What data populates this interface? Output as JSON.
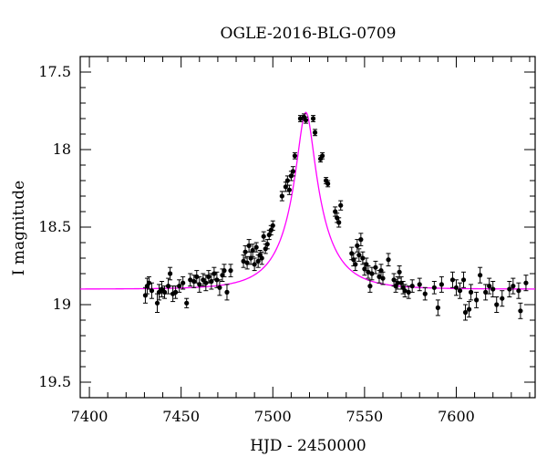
{
  "chart_data": {
    "type": "scatter",
    "title": "OGLE-2016-BLG-0709",
    "xlabel": "HJD - 2450000",
    "ylabel": "I magnitude",
    "xlim": [
      7395,
      7643
    ],
    "ylim": [
      19.6,
      17.4
    ],
    "y_inverted": true,
    "x_ticks": [
      7400,
      7450,
      7500,
      7550,
      7600
    ],
    "y_ticks": [
      17.5,
      18,
      18.5,
      19,
      19.5
    ],
    "grid": false,
    "legend": "none",
    "colors": {
      "points": "#000000",
      "model": "#ff00ff",
      "frame": "#000000"
    },
    "series": [
      {
        "type": "scatter_with_errorbars",
        "points": [
          [
            7430.5,
            18.94,
            0.05
          ],
          [
            7431.5,
            18.88,
            0.05
          ],
          [
            7432.5,
            18.86,
            0.04
          ],
          [
            7434,
            18.91,
            0.05
          ],
          [
            7437,
            18.99,
            0.06
          ],
          [
            7438,
            18.92,
            0.05
          ],
          [
            7439.5,
            18.9,
            0.05
          ],
          [
            7441,
            18.92,
            0.04
          ],
          [
            7443,
            18.88,
            0.05
          ],
          [
            7444,
            18.8,
            0.04
          ],
          [
            7445.5,
            18.93,
            0.05
          ],
          [
            7447,
            18.92,
            0.04
          ],
          [
            7449,
            18.88,
            0.04
          ],
          [
            7451,
            18.86,
            0.04
          ],
          [
            7453,
            18.99,
            0.03
          ],
          [
            7455,
            18.84,
            0.04
          ],
          [
            7457,
            18.85,
            0.04
          ],
          [
            7458.5,
            18.82,
            0.04
          ],
          [
            7460,
            18.87,
            0.05
          ],
          [
            7462,
            18.84,
            0.04
          ],
          [
            7463.5,
            18.86,
            0.05
          ],
          [
            7465,
            18.82,
            0.04
          ],
          [
            7466.5,
            18.85,
            0.05
          ],
          [
            7468,
            18.8,
            0.04
          ],
          [
            7469.5,
            18.84,
            0.05
          ],
          [
            7471,
            18.89,
            0.05
          ],
          [
            7472.5,
            18.81,
            0.04
          ],
          [
            7473.5,
            18.78,
            0.04
          ],
          [
            7475,
            18.92,
            0.05
          ],
          [
            7477,
            18.78,
            0.04
          ],
          [
            7484,
            18.72,
            0.04
          ],
          [
            7485,
            18.66,
            0.04
          ],
          [
            7486,
            18.73,
            0.04
          ],
          [
            7487,
            18.62,
            0.04
          ],
          [
            7488,
            18.7,
            0.04
          ],
          [
            7489,
            18.65,
            0.04
          ],
          [
            7490,
            18.74,
            0.04
          ],
          [
            7491,
            18.63,
            0.03
          ],
          [
            7492,
            18.72,
            0.04
          ],
          [
            7493,
            18.68,
            0.03
          ],
          [
            7494,
            18.7,
            0.04
          ],
          [
            7495,
            18.56,
            0.03
          ],
          [
            7496,
            18.64,
            0.03
          ],
          [
            7497,
            18.61,
            0.03
          ],
          [
            7498,
            18.55,
            0.03
          ],
          [
            7499,
            18.52,
            0.03
          ],
          [
            7500,
            18.49,
            0.03
          ],
          [
            7505,
            18.3,
            0.03
          ],
          [
            7507,
            18.24,
            0.03
          ],
          [
            7508,
            18.2,
            0.03
          ],
          [
            7509,
            18.26,
            0.03
          ],
          [
            7510,
            18.17,
            0.03
          ],
          [
            7511,
            18.14,
            0.03
          ],
          [
            7512,
            18.04,
            0.02
          ],
          [
            7515,
            17.8,
            0.02
          ],
          [
            7517,
            17.79,
            0.02
          ],
          [
            7518,
            17.81,
            0.02
          ],
          [
            7522,
            17.8,
            0.02
          ],
          [
            7523,
            17.89,
            0.02
          ],
          [
            7526,
            18.06,
            0.02
          ],
          [
            7527,
            18.04,
            0.02
          ],
          [
            7529,
            18.2,
            0.02
          ],
          [
            7530,
            18.22,
            0.02
          ],
          [
            7534,
            18.4,
            0.03
          ],
          [
            7535,
            18.44,
            0.03
          ],
          [
            7536,
            18.47,
            0.03
          ],
          [
            7537,
            18.36,
            0.03
          ],
          [
            7543,
            18.67,
            0.04
          ],
          [
            7544,
            18.71,
            0.04
          ],
          [
            7545,
            18.74,
            0.04
          ],
          [
            7546,
            18.62,
            0.04
          ],
          [
            7547,
            18.68,
            0.04
          ],
          [
            7548,
            18.58,
            0.04
          ],
          [
            7549,
            18.7,
            0.04
          ],
          [
            7550,
            18.77,
            0.04
          ],
          [
            7551,
            18.74,
            0.04
          ],
          [
            7552,
            18.79,
            0.04
          ],
          [
            7553,
            18.88,
            0.04
          ],
          [
            7554,
            18.8,
            0.04
          ],
          [
            7556,
            18.76,
            0.04
          ],
          [
            7558,
            18.82,
            0.04
          ],
          [
            7559,
            18.78,
            0.04
          ],
          [
            7560,
            18.83,
            0.04
          ],
          [
            7563,
            18.71,
            0.04
          ],
          [
            7566,
            18.84,
            0.04
          ],
          [
            7567,
            18.88,
            0.04
          ],
          [
            7568,
            18.86,
            0.04
          ],
          [
            7569,
            18.79,
            0.04
          ],
          [
            7570,
            18.86,
            0.04
          ],
          [
            7571,
            18.89,
            0.04
          ],
          [
            7572,
            18.91,
            0.04
          ],
          [
            7574,
            18.92,
            0.04
          ],
          [
            7576,
            18.88,
            0.04
          ],
          [
            7580,
            18.87,
            0.04
          ],
          [
            7583,
            18.93,
            0.04
          ],
          [
            7588,
            18.89,
            0.04
          ],
          [
            7590,
            19.02,
            0.05
          ],
          [
            7592,
            18.87,
            0.05
          ],
          [
            7598,
            18.84,
            0.05
          ],
          [
            7600,
            18.89,
            0.05
          ],
          [
            7602,
            18.91,
            0.05
          ],
          [
            7604,
            18.84,
            0.05
          ],
          [
            7605,
            19.05,
            0.05
          ],
          [
            7607,
            19.03,
            0.05
          ],
          [
            7608,
            18.92,
            0.05
          ],
          [
            7611,
            18.97,
            0.05
          ],
          [
            7613,
            18.81,
            0.05
          ],
          [
            7616,
            18.92,
            0.05
          ],
          [
            7618,
            18.88,
            0.05
          ],
          [
            7620,
            18.9,
            0.05
          ],
          [
            7622,
            19.0,
            0.05
          ],
          [
            7625,
            18.96,
            0.05
          ],
          [
            7629,
            18.9,
            0.05
          ],
          [
            7631,
            18.88,
            0.05
          ],
          [
            7634,
            18.91,
            0.05
          ],
          [
            7635,
            19.04,
            0.05
          ],
          [
            7638,
            18.86,
            0.05
          ]
        ]
      },
      {
        "type": "model_curve",
        "t0": 7518,
        "baseline": 18.9,
        "peak": 17.76
      }
    ]
  }
}
